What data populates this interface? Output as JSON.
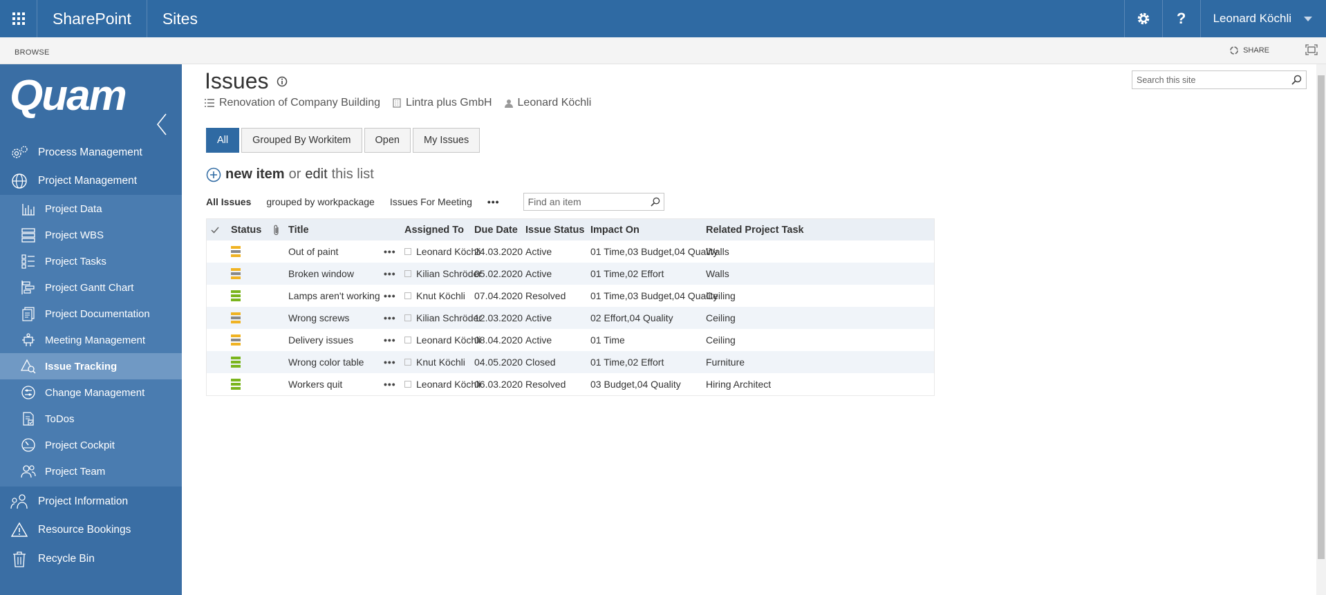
{
  "suitebar": {
    "app_name": "SharePoint",
    "section": "Sites",
    "help_label": "?",
    "user_name": "Leonard Köchli"
  },
  "ribbon": {
    "browse": "BROWSE",
    "share": "SHARE"
  },
  "sidebar": {
    "logo": "Quam",
    "top_items": [
      {
        "label": "Process Management",
        "icon": "gears-icon"
      },
      {
        "label": "Project Management",
        "icon": "globe-icon"
      }
    ],
    "sub_items": [
      {
        "label": "Project Data",
        "icon": "bar-chart-icon"
      },
      {
        "label": "Project WBS",
        "icon": "wbs-icon"
      },
      {
        "label": "Project Tasks",
        "icon": "task-list-icon"
      },
      {
        "label": "Project Gantt Chart",
        "icon": "gantt-icon"
      },
      {
        "label": "Project Documentation",
        "icon": "documents-icon"
      },
      {
        "label": "Meeting Management",
        "icon": "meeting-icon"
      },
      {
        "label": "Issue Tracking",
        "icon": "issue-icon",
        "active": true
      },
      {
        "label": "Change Management",
        "icon": "change-icon"
      },
      {
        "label": "ToDos",
        "icon": "todo-icon"
      },
      {
        "label": "Project Cockpit",
        "icon": "gauge-icon"
      },
      {
        "label": "Project Team",
        "icon": "team-icon"
      }
    ],
    "bottom_items": [
      {
        "label": "Project Information",
        "icon": "people-icon"
      },
      {
        "label": "Resource Bookings",
        "icon": "warning-icon"
      },
      {
        "label": "Recycle Bin",
        "icon": "trash-icon"
      }
    ]
  },
  "page": {
    "title": "Issues",
    "project": "Renovation of Company Building",
    "company": "Lintra plus GmbH",
    "owner": "Leonard Köchli",
    "search_placeholder": "Search this site"
  },
  "tabs": [
    "All",
    "Grouped By Workitem",
    "Open",
    "My Issues"
  ],
  "list": {
    "new_item": "new item",
    "or": "or",
    "edit": "edit",
    "this_list": "this list",
    "views": [
      "All Issues",
      "grouped by workpackage",
      "Issues For Meeting"
    ],
    "find_placeholder": "Find an item"
  },
  "colors": {
    "status_active": "#f0b323",
    "status_done": "#7ab51d",
    "accent": "#2f6aa3"
  },
  "table": {
    "headers": {
      "status": "Status",
      "title": "Title",
      "assigned": "Assigned To",
      "due": "Due Date",
      "issue_status": "Issue Status",
      "impact": "Impact On",
      "task": "Related Project Task"
    },
    "rows": [
      {
        "level": "active",
        "title": "Out of paint",
        "assigned": "Leonard Köchli",
        "due": "24.03.2020",
        "status": "Active",
        "impact": "01 Time,03 Budget,04 Quality",
        "task": "Walls"
      },
      {
        "level": "active",
        "title": "Broken window",
        "assigned": "Kilian Schröder",
        "due": "05.02.2020",
        "status": "Active",
        "impact": "01 Time,02 Effort",
        "task": "Walls"
      },
      {
        "level": "done",
        "title": "Lamps aren't working",
        "assigned": "Knut Köchli",
        "due": "07.04.2020",
        "status": "Resolved",
        "impact": "01 Time,03 Budget,04 Quality",
        "task": "Ceiling"
      },
      {
        "level": "active",
        "title": "Wrong screws",
        "assigned": "Kilian Schröder",
        "due": "12.03.2020",
        "status": "Active",
        "impact": "02 Effort,04 Quality",
        "task": "Ceiling"
      },
      {
        "level": "active",
        "title": "Delivery issues",
        "assigned": "Leonard Köchli",
        "due": "08.04.2020",
        "status": "Active",
        "impact": "01 Time",
        "task": "Ceiling"
      },
      {
        "level": "done",
        "title": "Wrong color table",
        "assigned": "Knut Köchli",
        "due": "04.05.2020",
        "status": "Closed",
        "impact": "01 Time,02 Effort",
        "task": "Furniture"
      },
      {
        "level": "done",
        "title": "Workers quit",
        "assigned": "Leonard Köchli",
        "due": "06.03.2020",
        "status": "Resolved",
        "impact": "03 Budget,04 Quality",
        "task": "Hiring Architect"
      }
    ]
  }
}
